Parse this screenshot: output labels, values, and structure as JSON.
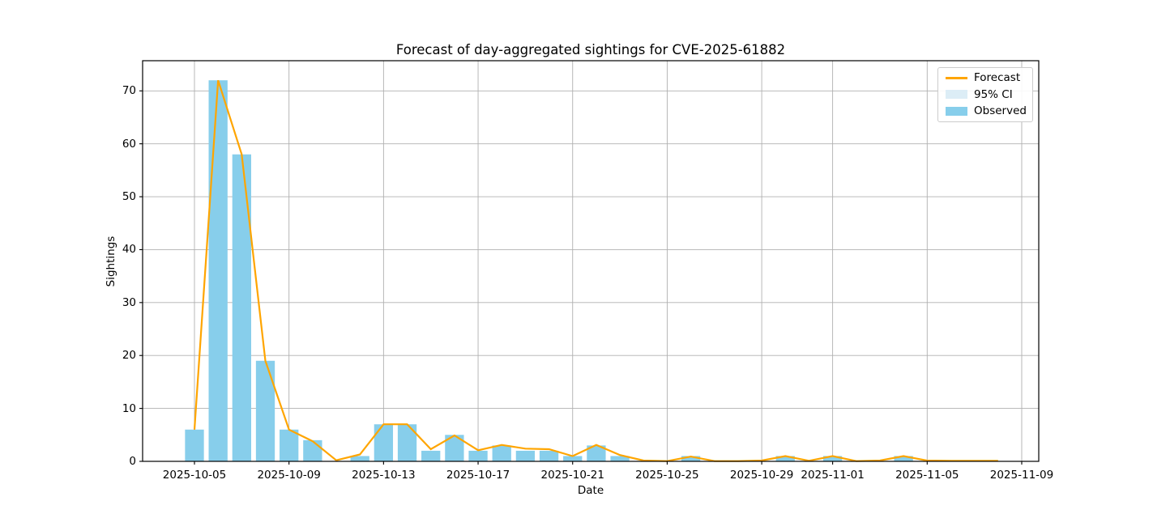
{
  "chart_data": {
    "type": "bar+line",
    "title": "Forecast of day-aggregated sightings for CVE-2025-61882",
    "xlabel": "Date",
    "ylabel": "Sightings",
    "grid": true,
    "ylim": [
      0,
      75.7
    ],
    "y_ticks": [
      0,
      10,
      20,
      30,
      40,
      50,
      60,
      70
    ],
    "x_ticks": [
      {
        "label": "2025-10-05",
        "day_index": 0
      },
      {
        "label": "2025-10-09",
        "day_index": 4
      },
      {
        "label": "2025-10-13",
        "day_index": 8
      },
      {
        "label": "2025-10-17",
        "day_index": 12
      },
      {
        "label": "2025-10-21",
        "day_index": 16
      },
      {
        "label": "2025-10-25",
        "day_index": 20
      },
      {
        "label": "2025-10-29",
        "day_index": 24
      },
      {
        "label": "2025-11-01",
        "day_index": 27
      },
      {
        "label": "2025-11-05",
        "day_index": 31
      },
      {
        "label": "2025-11-09",
        "day_index": 35
      }
    ],
    "dates": [
      "2025-10-05",
      "2025-10-06",
      "2025-10-07",
      "2025-10-08",
      "2025-10-09",
      "2025-10-10",
      "2025-10-11",
      "2025-10-12",
      "2025-10-13",
      "2025-10-14",
      "2025-10-15",
      "2025-10-16",
      "2025-10-17",
      "2025-10-18",
      "2025-10-19",
      "2025-10-20",
      "2025-10-21",
      "2025-10-22",
      "2025-10-23",
      "2025-10-24",
      "2025-10-25",
      "2025-10-26",
      "2025-10-27",
      "2025-10-28",
      "2025-10-29",
      "2025-10-30",
      "2025-10-31",
      "2025-11-01",
      "2025-11-02",
      "2025-11-03",
      "2025-11-04",
      "2025-11-05",
      "2025-11-06",
      "2025-11-07",
      "2025-11-08"
    ],
    "series": [
      {
        "name": "Observed",
        "type": "bar",
        "color": "#87CEEB",
        "start_date": "2025-10-05",
        "end_date": "2025-11-04",
        "values": [
          6,
          72,
          58,
          19,
          6,
          4,
          0,
          1,
          7,
          7,
          2,
          5,
          2,
          3,
          2,
          2,
          1,
          3,
          1,
          0,
          0,
          1,
          0,
          0,
          0,
          1,
          0,
          1,
          0,
          0,
          1
        ]
      },
      {
        "name": "Forecast",
        "type": "line",
        "color": "#FFA500",
        "start_date": "2025-10-05",
        "end_date": "2025-11-08",
        "values": [
          6,
          72,
          58,
          19,
          6,
          3.8,
          0.2,
          1.3,
          7,
          7,
          2.3,
          4.9,
          2.1,
          3.1,
          2.4,
          2.3,
          1.0,
          3.1,
          1.2,
          0.15,
          0.05,
          0.9,
          0.05,
          0.05,
          0.15,
          1.0,
          0.1,
          1.0,
          0.05,
          0.15,
          1.0,
          0.15,
          0.1,
          0.1,
          0.1
        ]
      },
      {
        "name": "95% CI",
        "type": "band",
        "color": "#DCEDF6",
        "visible_in_plot": false
      }
    ],
    "colors": {
      "gridline": "#b0b0b0",
      "spine": "#000000",
      "background": "#ffffff"
    },
    "legend": {
      "position": "upper right",
      "items": [
        {
          "label": "Forecast",
          "swatch": "line",
          "color": "#FFA500"
        },
        {
          "label": "95% CI",
          "swatch": "patch",
          "color": "#DCEDF6"
        },
        {
          "label": "Observed",
          "swatch": "patch",
          "color": "#87CEEB"
        }
      ]
    }
  }
}
